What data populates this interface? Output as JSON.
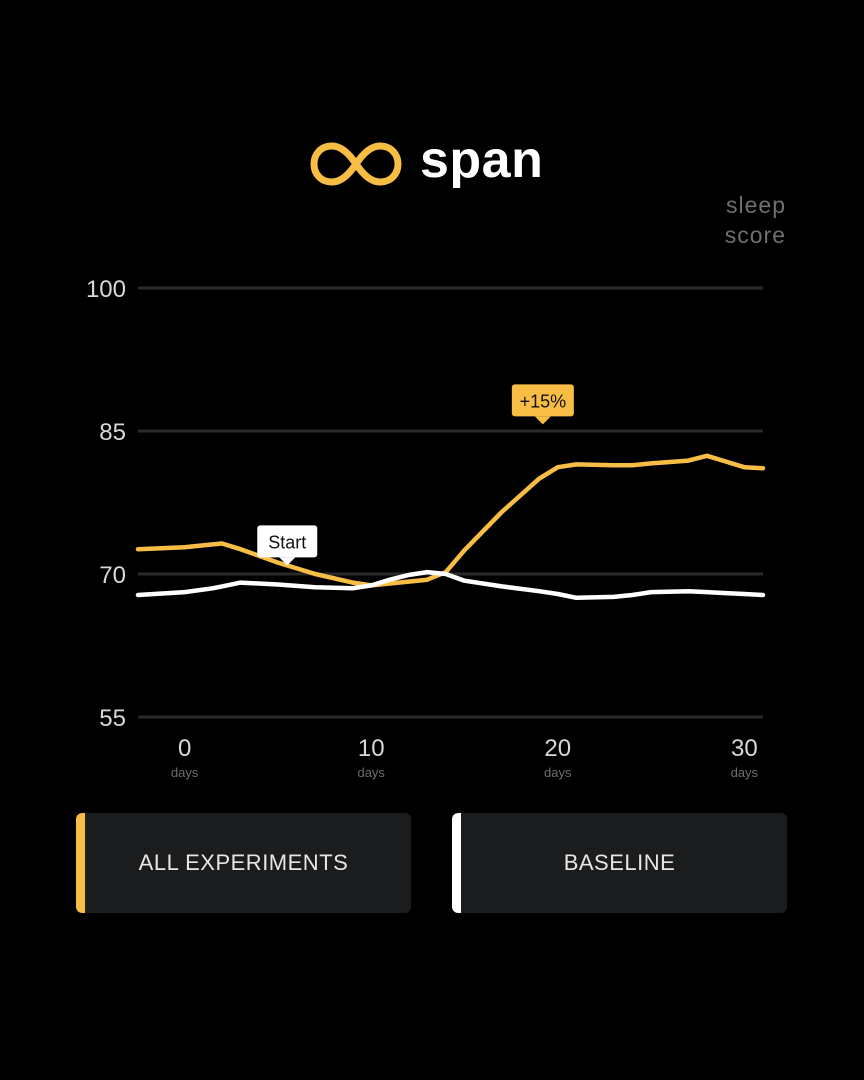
{
  "brand": {
    "name": "span",
    "accent": "#f7bd45"
  },
  "unit_label": [
    "sleep",
    "score"
  ],
  "chart_data": {
    "type": "line",
    "x": [
      -2.5,
      0,
      1.5,
      2,
      3,
      5,
      7,
      9,
      10,
      11,
      12,
      13,
      14,
      15,
      17,
      19,
      20,
      21,
      23,
      24,
      25,
      27,
      28,
      29,
      30,
      31
    ],
    "series": [
      {
        "name": "ALL EXPERIMENTS",
        "color": "#f7bd45",
        "values": [
          72.6,
          72.8,
          73.1,
          73.2,
          72.6,
          71.2,
          70.0,
          69.1,
          68.8,
          69.0,
          69.2,
          69.4,
          70.2,
          72.5,
          76.5,
          80.0,
          81.2,
          81.5,
          81.4,
          81.4,
          81.6,
          81.9,
          82.4,
          81.8,
          81.2,
          81.1
        ]
      },
      {
        "name": "BASELINE",
        "color": "#ffffff",
        "values": [
          67.8,
          68.1,
          68.5,
          68.7,
          69.1,
          68.9,
          68.6,
          68.5,
          68.8,
          69.4,
          69.9,
          70.2,
          70.0,
          69.3,
          68.7,
          68.2,
          67.9,
          67.5,
          67.6,
          67.8,
          68.1,
          68.2,
          68.1,
          68.0,
          67.9,
          67.8
        ]
      }
    ],
    "xlim": [
      -2.5,
      31
    ],
    "ylim": [
      55,
      100
    ],
    "y_ticks": [
      55,
      70,
      85,
      100
    ],
    "x_ticks": [
      0,
      10,
      20,
      30
    ],
    "x_tick_unit": "days",
    "grid": true,
    "annotations": [
      {
        "text": "Start",
        "x": 5.5,
        "y": 70.9,
        "style": "white"
      },
      {
        "text": "+15%",
        "x": 19.2,
        "y": 85.7,
        "style": "accent"
      }
    ]
  },
  "legend": [
    {
      "label": "ALL EXPERIMENTS",
      "color": "#f7bd45"
    },
    {
      "label": "BASELINE",
      "color": "#ffffff"
    }
  ]
}
